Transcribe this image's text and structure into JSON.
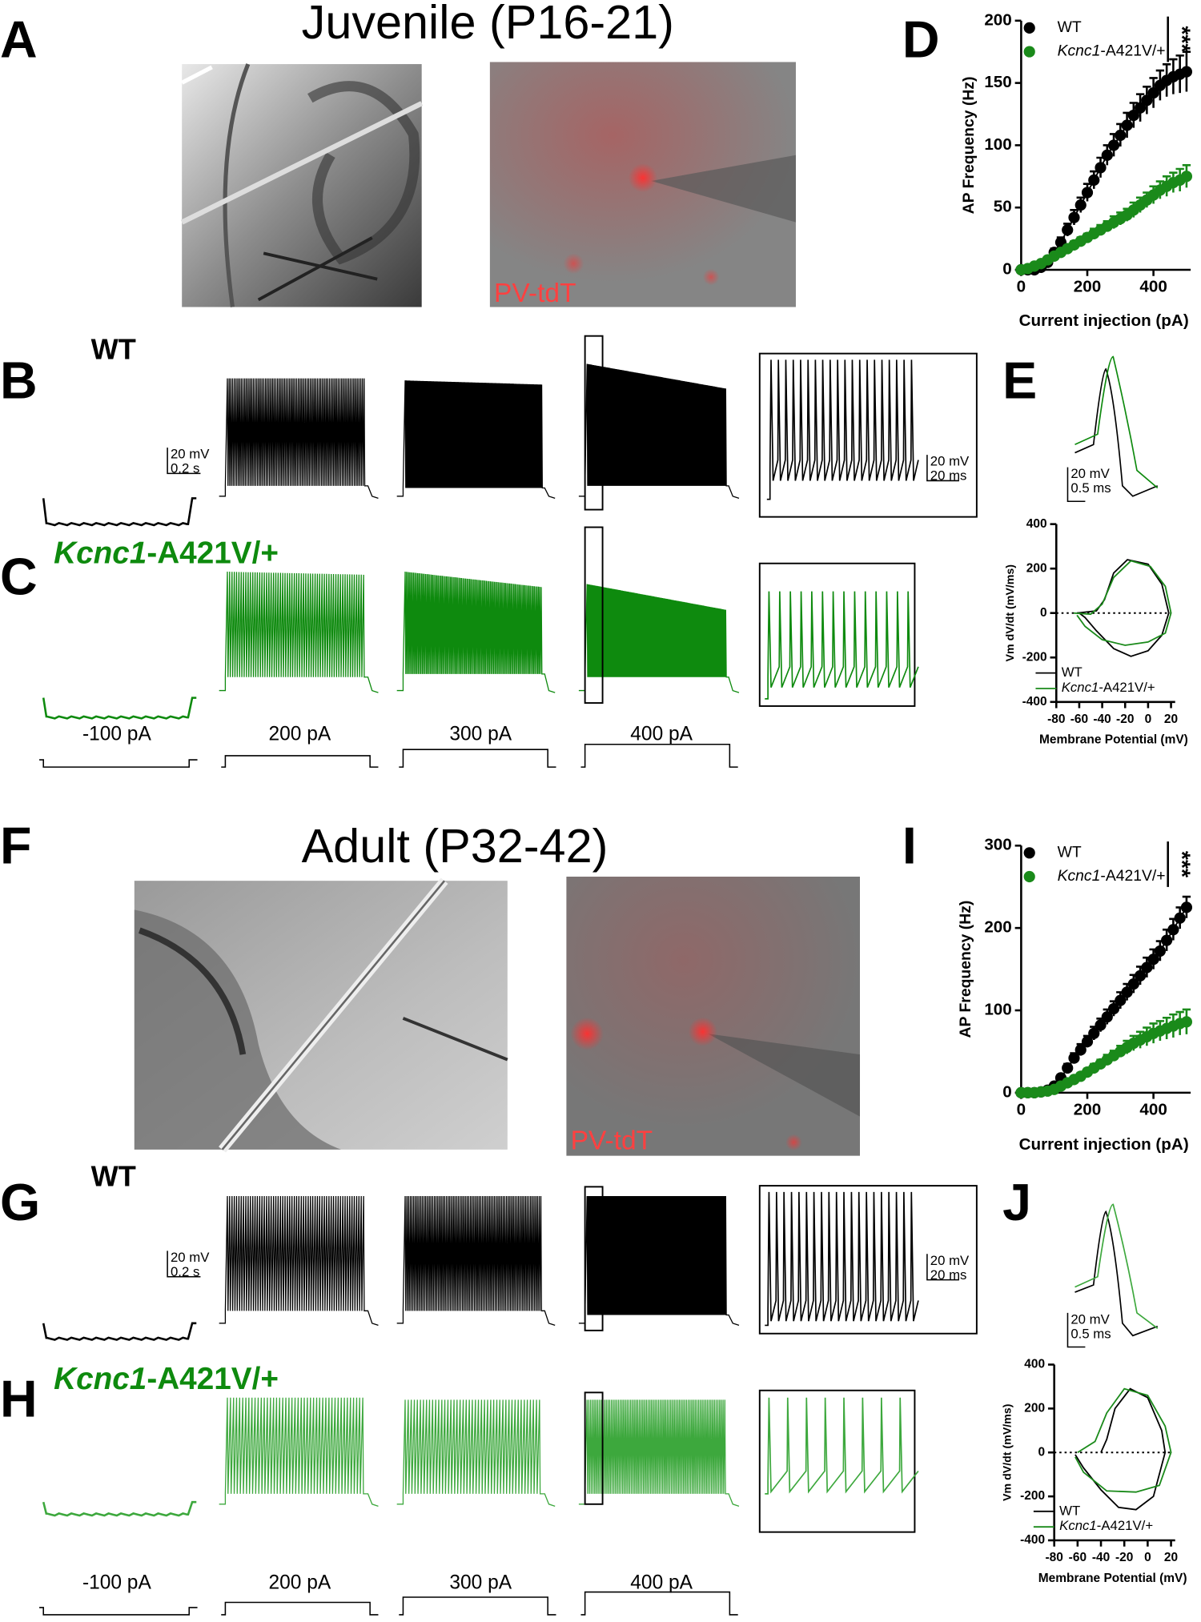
{
  "panel_labels": [
    "A",
    "B",
    "C",
    "D",
    "E",
    "F",
    "G",
    "H",
    "I",
    "J"
  ],
  "juvenile": {
    "title": "Juvenile (P16-21)",
    "image_label": "PV-tdT",
    "wt_label": "WT",
    "mutant_label": "Kcnc1-A421V/+",
    "trace_scale": [
      "20 mV",
      "0.2 s"
    ],
    "inset_scale": [
      "20 mV",
      "20 ms"
    ],
    "ap_scale": [
      "20 mV",
      "0.5 ms"
    ],
    "currents": [
      "-100 pA",
      "200 pA",
      "300 pA",
      "400 pA"
    ]
  },
  "adult": {
    "title": "Adult (P32-42)",
    "image_label": "PV-tdT",
    "wt_label": "WT",
    "mutant_label": "Kcnc1-A421V/+",
    "trace_scale": [
      "20 mV",
      "0.2 s"
    ],
    "inset_scale": [
      "20 mV",
      "20 ms"
    ],
    "ap_scale": [
      "20 mV",
      "0.5 ms"
    ],
    "currents": [
      "-100 pA",
      "200 pA",
      "300 pA",
      "400 pA"
    ]
  },
  "chart_data": [
    {
      "type": "errorbar",
      "xlabel": "Current injection (pA)",
      "ylabel": "AP Frequency (Hz)",
      "x": [
        0,
        20,
        40,
        60,
        80,
        100,
        120,
        140,
        160,
        180,
        200,
        220,
        240,
        260,
        280,
        300,
        320,
        340,
        360,
        380,
        400,
        420,
        440,
        460,
        480,
        500
      ],
      "xlim": [
        0,
        500
      ],
      "xticks": [
        0,
        200,
        400
      ],
      "ylim": [
        0,
        200
      ],
      "yticks": [
        0,
        50,
        100,
        150,
        200
      ],
      "legend": "upper left",
      "significance": "***",
      "series": [
        {
          "name": "WT",
          "color": "#000000",
          "values": [
            0,
            0,
            0,
            2,
            6,
            14,
            22,
            32,
            42,
            52,
            62,
            72,
            82,
            92,
            100,
            108,
            116,
            124,
            130,
            136,
            142,
            148,
            152,
            155,
            157,
            159
          ],
          "errors": [
            0,
            0,
            0,
            1,
            2,
            3,
            4,
            5,
            6,
            6,
            7,
            7,
            8,
            8,
            9,
            9,
            10,
            10,
            11,
            11,
            12,
            12,
            13,
            14,
            15,
            16
          ]
        },
        {
          "name": "Kcnc1-A421V/+",
          "color": "#1a8a1a",
          "values": [
            0,
            1,
            3,
            5,
            8,
            11,
            14,
            17,
            20,
            23,
            26,
            29,
            32,
            35,
            38,
            41,
            44,
            48,
            52,
            56,
            60,
            64,
            67,
            70,
            72,
            75
          ],
          "errors": [
            0,
            0,
            1,
            1,
            1,
            2,
            2,
            2,
            3,
            3,
            3,
            4,
            4,
            4,
            5,
            5,
            5,
            6,
            6,
            6,
            7,
            7,
            8,
            8,
            9,
            9
          ]
        }
      ]
    },
    {
      "type": "line",
      "xlabel": "Membrane Potential (mV)",
      "ylabel": "Vm dV/dt (mV/ms)",
      "xlim": [
        -80,
        20
      ],
      "xticks": [
        -80,
        -60,
        -40,
        -20,
        0,
        20
      ],
      "ylim": [
        -400,
        400
      ],
      "yticks": [
        -400,
        -200,
        0,
        200,
        400
      ],
      "legend": "lower left",
      "series": [
        {
          "name": "WT",
          "color": "#000000",
          "x": [
            -62,
            -45,
            -38,
            -30,
            -18,
            0,
            12,
            18,
            12,
            0,
            -15,
            -30,
            -45,
            -55,
            -60
          ],
          "values": [
            0,
            10,
            60,
            180,
            240,
            220,
            130,
            0,
            -100,
            -170,
            -195,
            -160,
            -80,
            -20,
            0
          ]
        },
        {
          "name": "Kcnc1-A421V/+",
          "color": "#1a8a1a",
          "x": [
            -65,
            -50,
            -40,
            -30,
            -15,
            2,
            15,
            20,
            15,
            0,
            -20,
            -40,
            -55,
            -62
          ],
          "values": [
            0,
            -5,
            40,
            160,
            235,
            210,
            120,
            0,
            -90,
            -130,
            -145,
            -120,
            -60,
            -10
          ]
        }
      ]
    },
    {
      "type": "errorbar",
      "xlabel": "Current injection (pA)",
      "ylabel": "AP Frequency (Hz)",
      "x": [
        0,
        20,
        40,
        60,
        80,
        100,
        120,
        140,
        160,
        180,
        200,
        220,
        240,
        260,
        280,
        300,
        320,
        340,
        360,
        380,
        400,
        420,
        440,
        460,
        480,
        500
      ],
      "xlim": [
        0,
        500
      ],
      "xticks": [
        0,
        200,
        400
      ],
      "ylim": [
        0,
        300
      ],
      "yticks": [
        0,
        100,
        200,
        300
      ],
      "legend": "upper left",
      "significance": "***",
      "series": [
        {
          "name": "WT",
          "color": "#000000",
          "values": [
            0,
            0,
            0,
            1,
            3,
            8,
            18,
            30,
            42,
            52,
            62,
            72,
            82,
            92,
            102,
            112,
            122,
            132,
            142,
            152,
            162,
            172,
            185,
            198,
            212,
            225
          ],
          "errors": [
            0,
            0,
            0,
            1,
            2,
            3,
            4,
            5,
            6,
            7,
            7,
            8,
            8,
            9,
            9,
            10,
            10,
            11,
            11,
            12,
            12,
            12,
            13,
            13,
            13,
            13
          ]
        },
        {
          "name": "Kcnc1-A421V/+",
          "color": "#1a8a1a",
          "values": [
            0,
            0,
            0,
            1,
            2,
            4,
            8,
            12,
            16,
            20,
            25,
            30,
            35,
            40,
            45,
            50,
            55,
            60,
            64,
            68,
            72,
            75,
            78,
            81,
            84,
            86
          ],
          "errors": [
            0,
            0,
            0,
            1,
            1,
            2,
            2,
            3,
            3,
            4,
            4,
            5,
            5,
            6,
            6,
            7,
            8,
            9,
            10,
            11,
            12,
            12,
            13,
            14,
            14,
            15
          ]
        }
      ]
    },
    {
      "type": "line",
      "xlabel": "Membrane Potential (mV)",
      "ylabel": "Vm dV/dt (mV/ms)",
      "xlim": [
        -80,
        20
      ],
      "xticks": [
        -80,
        -60,
        -40,
        -20,
        0,
        20
      ],
      "ylim": [
        -400,
        400
      ],
      "yticks": [
        -400,
        -200,
        0,
        200,
        400
      ],
      "legend": "lower left",
      "series": [
        {
          "name": "WT",
          "color": "#000000",
          "x": [
            -40,
            -35,
            -28,
            -15,
            0,
            12,
            15,
            5,
            -10,
            -25,
            -40,
            -55,
            -62
          ],
          "values": [
            0,
            60,
            200,
            290,
            250,
            100,
            0,
            -200,
            -260,
            -250,
            -170,
            -70,
            -10
          ]
        },
        {
          "name": "Kcnc1-A421V/+",
          "color": "#1a8a1a",
          "x": [
            -60,
            -45,
            -35,
            -20,
            0,
            15,
            20,
            10,
            -10,
            -35,
            -55,
            -62
          ],
          "values": [
            0,
            50,
            180,
            290,
            260,
            120,
            0,
            -150,
            -180,
            -175,
            -90,
            -20
          ]
        }
      ]
    }
  ]
}
